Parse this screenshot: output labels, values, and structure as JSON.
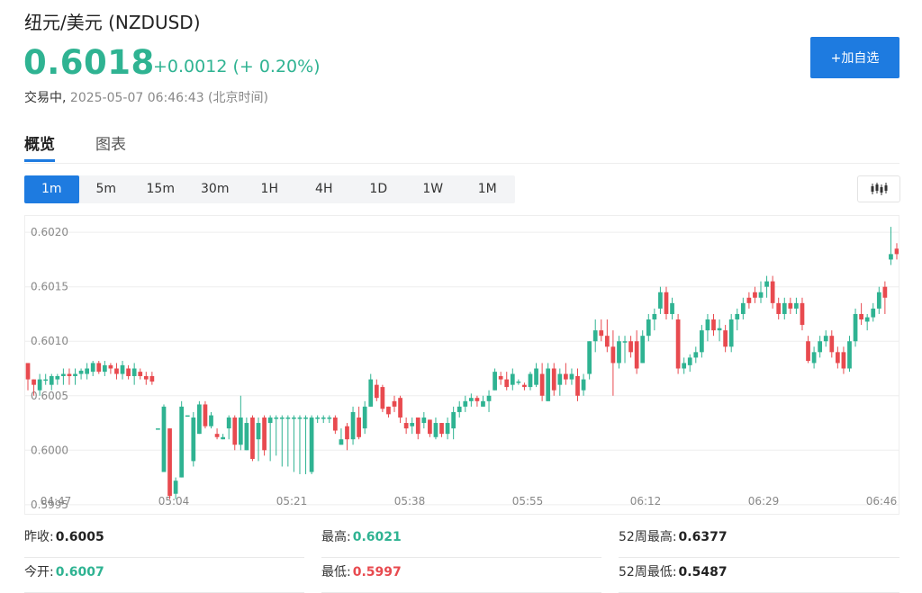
{
  "header": {
    "title": "纽元/美元 (NZDUSD)",
    "price": "0.6018",
    "change": "+0.0012 (+ 0.20%)",
    "status": "交易中,",
    "timestamp": "2025-05-07 06:46:43 (北京时间)",
    "add_button": "+加自选"
  },
  "tabs": [
    {
      "label": "概览",
      "active": true
    },
    {
      "label": "图表",
      "active": false
    }
  ],
  "periods": [
    {
      "label": "1m",
      "active": true
    },
    {
      "label": "5m"
    },
    {
      "label": "15m"
    },
    {
      "label": "30m"
    },
    {
      "label": "1H"
    },
    {
      "label": "4H"
    },
    {
      "label": "1D"
    },
    {
      "label": "1W"
    },
    {
      "label": "1M"
    }
  ],
  "chart_type_icon": "candlestick-icon",
  "colors": {
    "up": "#2fb392",
    "down": "#e84a4f",
    "accent": "#1e7be0"
  },
  "chart_data": {
    "type": "candlestick",
    "y_ticks": [
      "0.6020",
      "0.6015",
      "0.6010",
      "0.6005",
      "0.6000",
      "0.5995"
    ],
    "x_ticks": [
      "04:47",
      "05:04",
      "05:21",
      "05:38",
      "05:55",
      "06:12",
      "06:29",
      "06:46"
    ],
    "ylim": [
      0.59954,
      0.60215
    ],
    "grid": true,
    "candles": [
      [
        0.6008,
        0.6008,
        0.60055,
        0.60065
      ],
      [
        0.60065,
        0.60065,
        0.6005,
        0.6006
      ],
      [
        0.60055,
        0.6007,
        0.6005,
        0.60065
      ],
      [
        0.60065,
        0.6007,
        0.6006,
        0.60065
      ],
      [
        0.6006,
        0.6007,
        0.60055,
        0.60068
      ],
      [
        0.60065,
        0.6007,
        0.6006,
        0.60068
      ],
      [
        0.60068,
        0.60075,
        0.6006,
        0.6007
      ],
      [
        0.6007,
        0.60075,
        0.6006,
        0.60068
      ],
      [
        0.60068,
        0.60075,
        0.6006,
        0.6007
      ],
      [
        0.6007,
        0.60075,
        0.60065,
        0.60073
      ],
      [
        0.6007,
        0.6008,
        0.60065,
        0.60075
      ],
      [
        0.60072,
        0.60082,
        0.60068,
        0.6008
      ],
      [
        0.6008,
        0.60082,
        0.6007,
        0.60072
      ],
      [
        0.60072,
        0.60082,
        0.60068,
        0.60078
      ],
      [
        0.60078,
        0.6008,
        0.6007,
        0.60075
      ],
      [
        0.60075,
        0.6008,
        0.60065,
        0.6007
      ],
      [
        0.6007,
        0.60082,
        0.60065,
        0.60078
      ],
      [
        0.60075,
        0.60078,
        0.60065,
        0.60068
      ],
      [
        0.60068,
        0.6008,
        0.6006,
        0.60075
      ],
      [
        0.60072,
        0.60075,
        0.60065,
        0.60068
      ],
      [
        0.60068,
        0.60072,
        0.6006,
        0.60065
      ],
      [
        0.60068,
        0.60072,
        0.6006,
        0.60063
      ],
      [
        0.6002,
        0.6002,
        0.6002,
        0.6002
      ],
      [
        0.5998,
        0.60042,
        0.5998,
        0.6004
      ],
      [
        0.6002,
        0.6002,
        0.59955,
        0.59958
      ],
      [
        0.5996,
        0.59975,
        0.59955,
        0.59972
      ],
      [
        0.59975,
        0.60045,
        0.59975,
        0.6004
      ],
      [
        0.60032,
        0.60032,
        0.60032,
        0.60032
      ],
      [
        0.5999,
        0.60035,
        0.59985,
        0.6003
      ],
      [
        0.60015,
        0.60045,
        0.60015,
        0.60042
      ],
      [
        0.60042,
        0.60045,
        0.6002,
        0.60022
      ],
      [
        0.60022,
        0.60035,
        0.6002,
        0.60032
      ],
      [
        0.60015,
        0.6002,
        0.6001,
        0.60012
      ],
      [
        0.6001,
        0.60015,
        0.6001,
        0.60012
      ],
      [
        0.6002,
        0.60032,
        0.6001,
        0.6003
      ],
      [
        0.6003,
        0.60032,
        0.6,
        0.60005
      ],
      [
        0.60005,
        0.6005,
        0.6,
        0.6003
      ],
      [
        0.6,
        0.6003,
        0.6,
        0.60025
      ],
      [
        0.6003,
        0.60032,
        0.5999,
        0.59992
      ],
      [
        0.6001,
        0.6003,
        0.5999,
        0.60025
      ],
      [
        0.6003,
        0.60032,
        0.59995,
        0.6
      ],
      [
        0.60025,
        0.60032,
        0.5999,
        0.6003
      ],
      [
        0.6003,
        0.60032,
        0.59995,
        0.6003
      ],
      [
        0.6003,
        0.60032,
        0.59985,
        0.6003
      ],
      [
        0.6003,
        0.60032,
        0.59985,
        0.6003
      ],
      [
        0.6003,
        0.60032,
        0.5998,
        0.6003
      ],
      [
        0.6003,
        0.60032,
        0.59978,
        0.6003
      ],
      [
        0.6003,
        0.60032,
        0.59978,
        0.6003
      ],
      [
        0.5998,
        0.60032,
        0.59978,
        0.6003
      ],
      [
        0.6003,
        0.60032,
        0.60025,
        0.6003
      ],
      [
        0.6003,
        0.60032,
        0.60025,
        0.6003
      ],
      [
        0.6003,
        0.60032,
        0.60025,
        0.6003
      ],
      [
        0.6003,
        0.60032,
        0.60015,
        0.60018
      ],
      [
        0.60005,
        0.6002,
        0.60005,
        0.6001
      ],
      [
        0.60022,
        0.60025,
        0.6,
        0.6001
      ],
      [
        0.6001,
        0.6004,
        0.60005,
        0.60035
      ],
      [
        0.6003,
        0.6004,
        0.6001,
        0.60012
      ],
      [
        0.6002,
        0.60045,
        0.60015,
        0.6004
      ],
      [
        0.6004,
        0.6007,
        0.6004,
        0.60065
      ],
      [
        0.6006,
        0.60065,
        0.60045,
        0.60048
      ],
      [
        0.60058,
        0.6006,
        0.60035,
        0.60038
      ],
      [
        0.6004,
        0.6004,
        0.6003,
        0.60033
      ],
      [
        0.60045,
        0.6005,
        0.60035,
        0.6004
      ],
      [
        0.60048,
        0.6005,
        0.60025,
        0.6003
      ],
      [
        0.60025,
        0.6003,
        0.60015,
        0.6002
      ],
      [
        0.60022,
        0.6003,
        0.60015,
        0.60025
      ],
      [
        0.6003,
        0.6003,
        0.6001,
        0.60015
      ],
      [
        0.60025,
        0.60035,
        0.6002,
        0.6003
      ],
      [
        0.60028,
        0.60028,
        0.60012,
        0.60015
      ],
      [
        0.60012,
        0.6003,
        0.6001,
        0.60025
      ],
      [
        0.60025,
        0.60025,
        0.60012,
        0.60015
      ],
      [
        0.60015,
        0.6003,
        0.6001,
        0.60025
      ],
      [
        0.6002,
        0.6004,
        0.6001,
        0.60035
      ],
      [
        0.60035,
        0.60045,
        0.6003,
        0.6004
      ],
      [
        0.6004,
        0.6005,
        0.60035,
        0.60045
      ],
      [
        0.60045,
        0.60052,
        0.6004,
        0.60048
      ],
      [
        0.60048,
        0.6005,
        0.6004,
        0.60045
      ],
      [
        0.6004,
        0.6005,
        0.6004,
        0.60045
      ],
      [
        0.60045,
        0.60055,
        0.60035,
        0.6005
      ],
      [
        0.60055,
        0.60075,
        0.60055,
        0.60072
      ],
      [
        0.60068,
        0.60072,
        0.6006,
        0.60065
      ],
      [
        0.60065,
        0.60072,
        0.60055,
        0.60058
      ],
      [
        0.6006,
        0.60075,
        0.60055,
        0.6007
      ],
      [
        0.60062,
        0.60065,
        0.6006,
        0.60063
      ],
      [
        0.6006,
        0.60062,
        0.60055,
        0.60058
      ],
      [
        0.60058,
        0.60072,
        0.60055,
        0.6007
      ],
      [
        0.6006,
        0.6008,
        0.60058,
        0.60075
      ],
      [
        0.6007,
        0.6008,
        0.60045,
        0.6005
      ],
      [
        0.60045,
        0.6008,
        0.60045,
        0.60075
      ],
      [
        0.60075,
        0.6008,
        0.6005,
        0.60055
      ],
      [
        0.6006,
        0.60075,
        0.6005,
        0.6007
      ],
      [
        0.6007,
        0.6008,
        0.6006,
        0.60065
      ],
      [
        0.60065,
        0.60075,
        0.6006,
        0.6007
      ],
      [
        0.60068,
        0.60075,
        0.60045,
        0.6005
      ],
      [
        0.60055,
        0.6007,
        0.6005,
        0.60065
      ],
      [
        0.6007,
        0.601,
        0.60065,
        0.601
      ],
      [
        0.601,
        0.6012,
        0.6009,
        0.6011
      ],
      [
        0.6011,
        0.6012,
        0.601,
        0.60105
      ],
      [
        0.60105,
        0.6012,
        0.6009,
        0.60095
      ],
      [
        0.60095,
        0.6011,
        0.6005,
        0.6008
      ],
      [
        0.6008,
        0.60105,
        0.60075,
        0.601
      ],
      [
        0.601,
        0.60105,
        0.6008,
        0.601
      ],
      [
        0.601,
        0.60105,
        0.60085,
        0.6009
      ],
      [
        0.601,
        0.6011,
        0.6007,
        0.60075
      ],
      [
        0.6008,
        0.6011,
        0.6008,
        0.60105
      ],
      [
        0.60105,
        0.60125,
        0.601,
        0.6012
      ],
      [
        0.6012,
        0.6013,
        0.6011,
        0.60125
      ],
      [
        0.6013,
        0.6015,
        0.60125,
        0.60145
      ],
      [
        0.60145,
        0.6015,
        0.6012,
        0.60125
      ],
      [
        0.60125,
        0.6014,
        0.6012,
        0.60135
      ],
      [
        0.6012,
        0.60125,
        0.6007,
        0.60075
      ],
      [
        0.60075,
        0.60085,
        0.6007,
        0.6008
      ],
      [
        0.60078,
        0.60088,
        0.60072,
        0.60085
      ],
      [
        0.60085,
        0.60095,
        0.6008,
        0.6009
      ],
      [
        0.6009,
        0.60115,
        0.60085,
        0.6011
      ],
      [
        0.6011,
        0.60125,
        0.601,
        0.6012
      ],
      [
        0.6012,
        0.60125,
        0.60105,
        0.6011
      ],
      [
        0.6011,
        0.6012,
        0.601,
        0.60112
      ],
      [
        0.6011,
        0.60115,
        0.6009,
        0.60095
      ],
      [
        0.60095,
        0.60125,
        0.6009,
        0.6012
      ],
      [
        0.6012,
        0.6013,
        0.6011,
        0.60125
      ],
      [
        0.60125,
        0.6014,
        0.6012,
        0.60135
      ],
      [
        0.6014,
        0.60145,
        0.6013,
        0.60135
      ],
      [
        0.60145,
        0.6015,
        0.60135,
        0.6014
      ],
      [
        0.6014,
        0.60155,
        0.60135,
        0.60145
      ],
      [
        0.6015,
        0.6016,
        0.6014,
        0.60155
      ],
      [
        0.60155,
        0.6016,
        0.6013,
        0.60135
      ],
      [
        0.60135,
        0.6014,
        0.6012,
        0.60125
      ],
      [
        0.60125,
        0.6014,
        0.6012,
        0.60135
      ],
      [
        0.60135,
        0.6014,
        0.60125,
        0.6013
      ],
      [
        0.6013,
        0.6014,
        0.60125,
        0.60135
      ],
      [
        0.60135,
        0.6014,
        0.6011,
        0.60115
      ],
      [
        0.601,
        0.60105,
        0.6008,
        0.60082
      ],
      [
        0.6008,
        0.60095,
        0.60075,
        0.6009
      ],
      [
        0.6009,
        0.60105,
        0.60085,
        0.601
      ],
      [
        0.601,
        0.6011,
        0.60095,
        0.60105
      ],
      [
        0.60105,
        0.6011,
        0.60085,
        0.6009
      ],
      [
        0.6009,
        0.60095,
        0.60075,
        0.6008
      ],
      [
        0.6009,
        0.60095,
        0.6007,
        0.60075
      ],
      [
        0.60075,
        0.60105,
        0.60072,
        0.601
      ],
      [
        0.601,
        0.6013,
        0.60095,
        0.60125
      ],
      [
        0.60125,
        0.60135,
        0.60115,
        0.6012
      ],
      [
        0.60118,
        0.60125,
        0.6011,
        0.60122
      ],
      [
        0.60122,
        0.60135,
        0.60118,
        0.6013
      ],
      [
        0.6013,
        0.6015,
        0.60125,
        0.60145
      ],
      [
        0.6015,
        0.60155,
        0.60125,
        0.6014
      ],
      [
        0.60175,
        0.60205,
        0.6017,
        0.6018
      ],
      [
        0.60185,
        0.6019,
        0.60175,
        0.6018
      ]
    ]
  },
  "stats": [
    {
      "label": "昨收:",
      "value": "0.6005",
      "tone": "dark"
    },
    {
      "label": "最高:",
      "value": "0.6021",
      "tone": "green"
    },
    {
      "label": "52周最高:",
      "value": "0.6377",
      "tone": "dark"
    },
    {
      "label": "今开:",
      "value": "0.6007",
      "tone": "green"
    },
    {
      "label": "最低:",
      "value": "0.5997",
      "tone": "red"
    },
    {
      "label": "52周最低:",
      "value": "0.5487",
      "tone": "dark"
    }
  ]
}
